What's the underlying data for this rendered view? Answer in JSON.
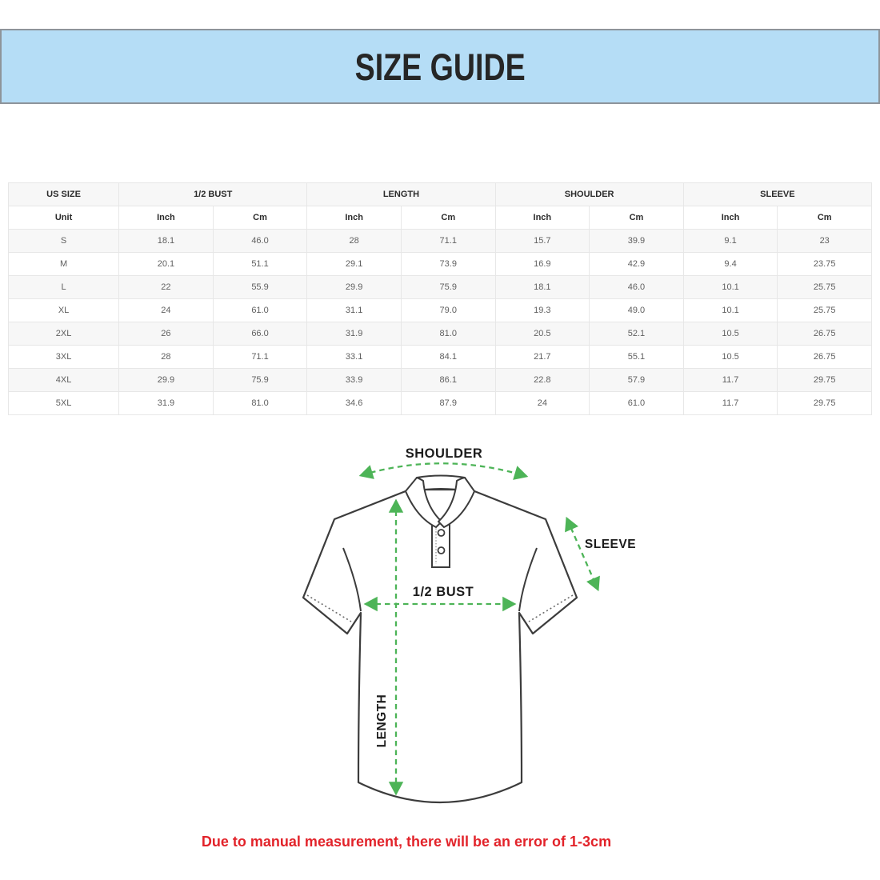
{
  "header": {
    "title": "SIZE GUIDE"
  },
  "colors": {
    "banner_bg": "#b5ddf6",
    "banner_border": "#8e949a",
    "accent_green": "#4db457",
    "shirt_outline": "#3c3c3c",
    "disclaimer_red": "#e2232a",
    "row_alt_bg": "#f7f7f7",
    "table_border": "#e7e7e7"
  },
  "size_table": {
    "groups": [
      {
        "label": "US SIZE",
        "span": 1
      },
      {
        "label": "1/2 BUST",
        "span": 2
      },
      {
        "label": "LENGTH",
        "span": 2
      },
      {
        "label": "SHOULDER",
        "span": 2
      },
      {
        "label": "SLEEVE",
        "span": 2
      }
    ],
    "unit_row": [
      "Unit",
      "Inch",
      "Cm",
      "Inch",
      "Cm",
      "Inch",
      "Cm",
      "Inch",
      "Cm"
    ],
    "rows": [
      [
        "S",
        "18.1",
        "46.0",
        "28",
        "71.1",
        "15.7",
        "39.9",
        "9.1",
        "23"
      ],
      [
        "M",
        "20.1",
        "51.1",
        "29.1",
        "73.9",
        "16.9",
        "42.9",
        "9.4",
        "23.75"
      ],
      [
        "L",
        "22",
        "55.9",
        "29.9",
        "75.9",
        "18.1",
        "46.0",
        "10.1",
        "25.75"
      ],
      [
        "XL",
        "24",
        "61.0",
        "31.1",
        "79.0",
        "19.3",
        "49.0",
        "10.1",
        "25.75"
      ],
      [
        "2XL",
        "26",
        "66.0",
        "31.9",
        "81.0",
        "20.5",
        "52.1",
        "10.5",
        "26.75"
      ],
      [
        "3XL",
        "28",
        "71.1",
        "33.1",
        "84.1",
        "21.7",
        "55.1",
        "10.5",
        "26.75"
      ],
      [
        "4XL",
        "29.9",
        "75.9",
        "33.9",
        "86.1",
        "22.8",
        "57.9",
        "11.7",
        "29.75"
      ],
      [
        "5XL",
        "31.9",
        "81.0",
        "34.6",
        "87.9",
        "24",
        "61.0",
        "11.7",
        "29.75"
      ]
    ]
  },
  "diagram": {
    "shoulder_label": "SHOULDER",
    "sleeve_label": "SLEEVE",
    "bust_label": "1/2 BUST",
    "length_label": "LENGTH"
  },
  "footer": {
    "disclaimer": "Due to manual measurement, there will be an error of 1-3cm"
  }
}
